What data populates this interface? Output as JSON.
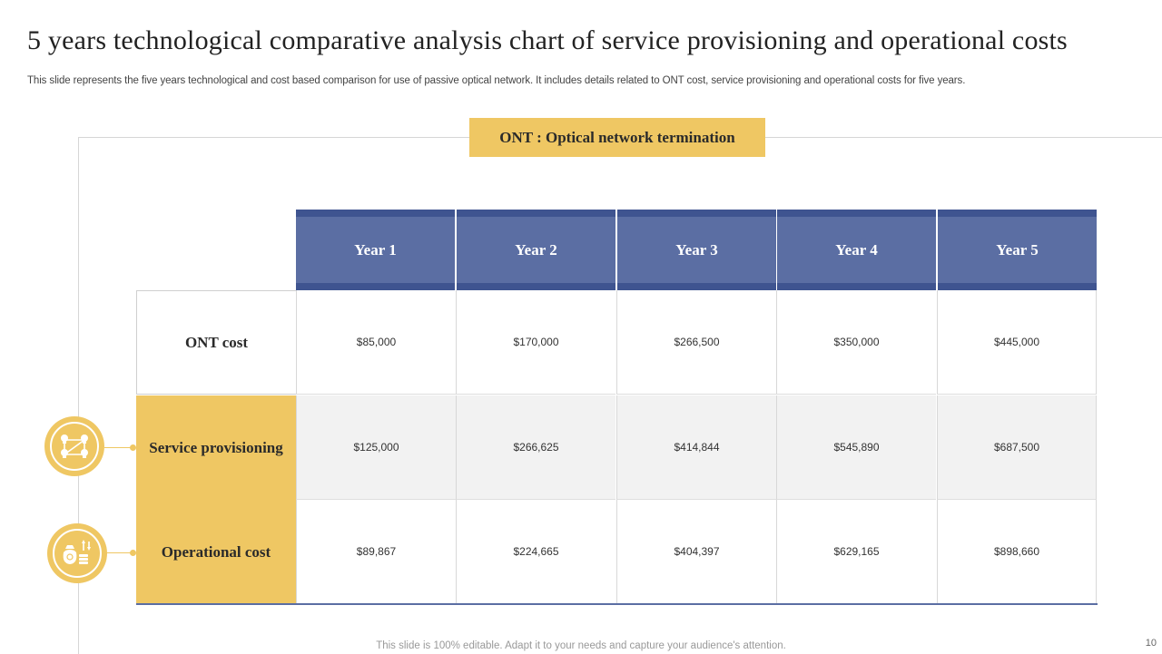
{
  "slide": {
    "title": "5 years technological comparative analysis chart of service provisioning and operational costs",
    "subtitle": "This slide represents the five years technological and cost based comparison for use of passive optical network. It includes details related to ONT cost, service provisioning and operational costs for five years.",
    "legend": "ONT : Optical network termination",
    "footer": "This slide is 100% editable. Adapt it to your needs and capture your audience's attention.",
    "page_number": "10"
  },
  "table": {
    "columns": [
      "Year 1",
      "Year 2",
      "Year 3",
      "Year 4",
      "Year 5"
    ],
    "rows": [
      {
        "label": "ONT cost",
        "values": [
          "$85,000",
          "$170,000",
          "$266,500",
          "$350,000",
          "$445,000"
        ]
      },
      {
        "label": "Service provisioning",
        "values": [
          "$125,000",
          "$266,625",
          "$414,844",
          "$545,890",
          "$687,500"
        ]
      },
      {
        "label": "Operational cost",
        "values": [
          "$89,867",
          "$224,665",
          "$404,397",
          "$629,165",
          "$898,660"
        ]
      }
    ]
  },
  "icons": {
    "service_provisioning": "network-idea-icon",
    "operational_cost": "money-bag-coins-icon"
  },
  "colors": {
    "accent_gold": "#efc763",
    "header_blue": "#5b6ea3",
    "header_band": "#3f5490"
  }
}
